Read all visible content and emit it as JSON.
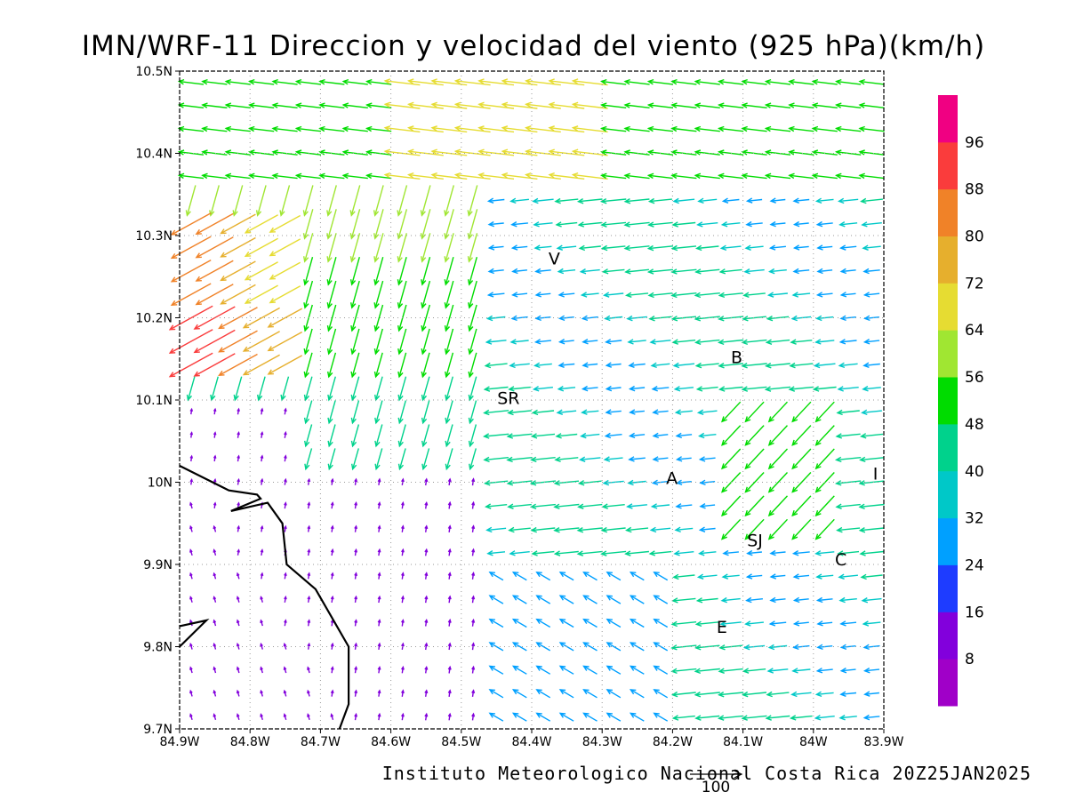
{
  "title": "IMN/WRF-11 Direccion y velocidad del viento (925 hPa)(km/h)",
  "footer": "Instituto Meteorologico Nacional Costa Rica 20Z25JAN2025",
  "reference_vector": {
    "label": "100",
    "speed_kmh": 100
  },
  "map": {
    "lon_range": [
      -84.9,
      -83.9
    ],
    "lat_range": [
      9.7,
      10.5
    ],
    "lon_ticks": [
      {
        "value": -84.9,
        "label": "84.9W"
      },
      {
        "value": -84.8,
        "label": "84.8W"
      },
      {
        "value": -84.7,
        "label": "84.7W"
      },
      {
        "value": -84.6,
        "label": "84.6W"
      },
      {
        "value": -84.5,
        "label": "84.5W"
      },
      {
        "value": -84.4,
        "label": "84.4W"
      },
      {
        "value": -84.3,
        "label": "84.3W"
      },
      {
        "value": -84.2,
        "label": "84.2W"
      },
      {
        "value": -84.1,
        "label": "84.1W"
      },
      {
        "value": -84.0,
        "label": "84W"
      },
      {
        "value": -83.9,
        "label": "83.9W"
      }
    ],
    "lat_ticks": [
      {
        "value": 9.7,
        "label": "9.7N"
      },
      {
        "value": 9.8,
        "label": "9.8N"
      },
      {
        "value": 9.9,
        "label": "9.9N"
      },
      {
        "value": 10.0,
        "label": "10N"
      },
      {
        "value": 10.1,
        "label": "10.1N"
      },
      {
        "value": 10.2,
        "label": "10.2N"
      },
      {
        "value": 10.3,
        "label": "10.3N"
      },
      {
        "value": 10.4,
        "label": "10.4N"
      },
      {
        "value": 10.5,
        "label": "10.5N"
      }
    ],
    "grid": "dotted",
    "coastline": [
      [
        [
          -84.9,
          10.02
        ],
        [
          -84.83,
          9.99
        ],
        [
          -84.79,
          9.985
        ],
        [
          -84.785,
          9.98
        ],
        [
          -84.827,
          9.965
        ],
        [
          -84.775,
          9.975
        ],
        [
          -84.754,
          9.95
        ],
        [
          -84.748,
          9.9
        ],
        [
          -84.707,
          9.87
        ],
        [
          -84.66,
          9.8
        ],
        [
          -84.66,
          9.73
        ],
        [
          -84.673,
          9.7
        ]
      ],
      [
        [
          -84.9,
          9.825
        ],
        [
          -84.862,
          9.832
        ],
        [
          -84.9,
          9.8
        ]
      ]
    ],
    "places": [
      {
        "label": "V",
        "lon": -84.368,
        "lat": 10.265
      },
      {
        "label": "SR",
        "lon": -84.433,
        "lat": 10.095
      },
      {
        "label": "B",
        "lon": -84.109,
        "lat": 10.145
      },
      {
        "label": "A",
        "lon": -84.201,
        "lat": 9.998
      },
      {
        "label": "I",
        "lon": -83.912,
        "lat": 10.003
      },
      {
        "label": "SJ",
        "lon": -84.083,
        "lat": 9.922
      },
      {
        "label": "C",
        "lon": -83.961,
        "lat": 9.899
      },
      {
        "label": "E",
        "lon": -84.13,
        "lat": 9.817
      }
    ]
  },
  "colorbar": {
    "colors": [
      "#a000c8",
      "#8200dc",
      "#1e3cff",
      "#00a0ff",
      "#00c8c8",
      "#00d28c",
      "#00dc00",
      "#a0e632",
      "#e6dc32",
      "#e6af2d",
      "#f08228",
      "#fa3c3c",
      "#f00082"
    ],
    "labels": [
      "8",
      "16",
      "24",
      "32",
      "40",
      "48",
      "56",
      "64",
      "72",
      "80",
      "88",
      "96"
    ]
  },
  "chart_data": {
    "type": "vector-field",
    "variable": "wind direction and speed at 925 hPa",
    "units": "km/h",
    "regions": [
      {
        "area": "NW corner (lon 84.9-84.75W, lat 10.12-10.3N)",
        "direction": "from NE",
        "speed_kmh": [
          64,
          96
        ]
      },
      {
        "area": "north band (lat 10.4-10.5N)",
        "direction": "from E",
        "speed_kmh": [
          40,
          72
        ]
      },
      {
        "area": "central mountains (lon 84.7-84.45W, lat 10.0-10.35N)",
        "direction": "from N/NE",
        "speed_kmh": [
          32,
          64
        ]
      },
      {
        "area": "eastern valley (lon 84.4-83.9W, lat 9.8-10.3N)",
        "direction": "from E",
        "speed_kmh": [
          24,
          56
        ]
      },
      {
        "area": "SW lowlands (lon 84.9-84.45W, lat 9.7-10.1N)",
        "direction": "from S/SE",
        "speed_kmh": [
          0,
          16
        ]
      }
    ]
  }
}
